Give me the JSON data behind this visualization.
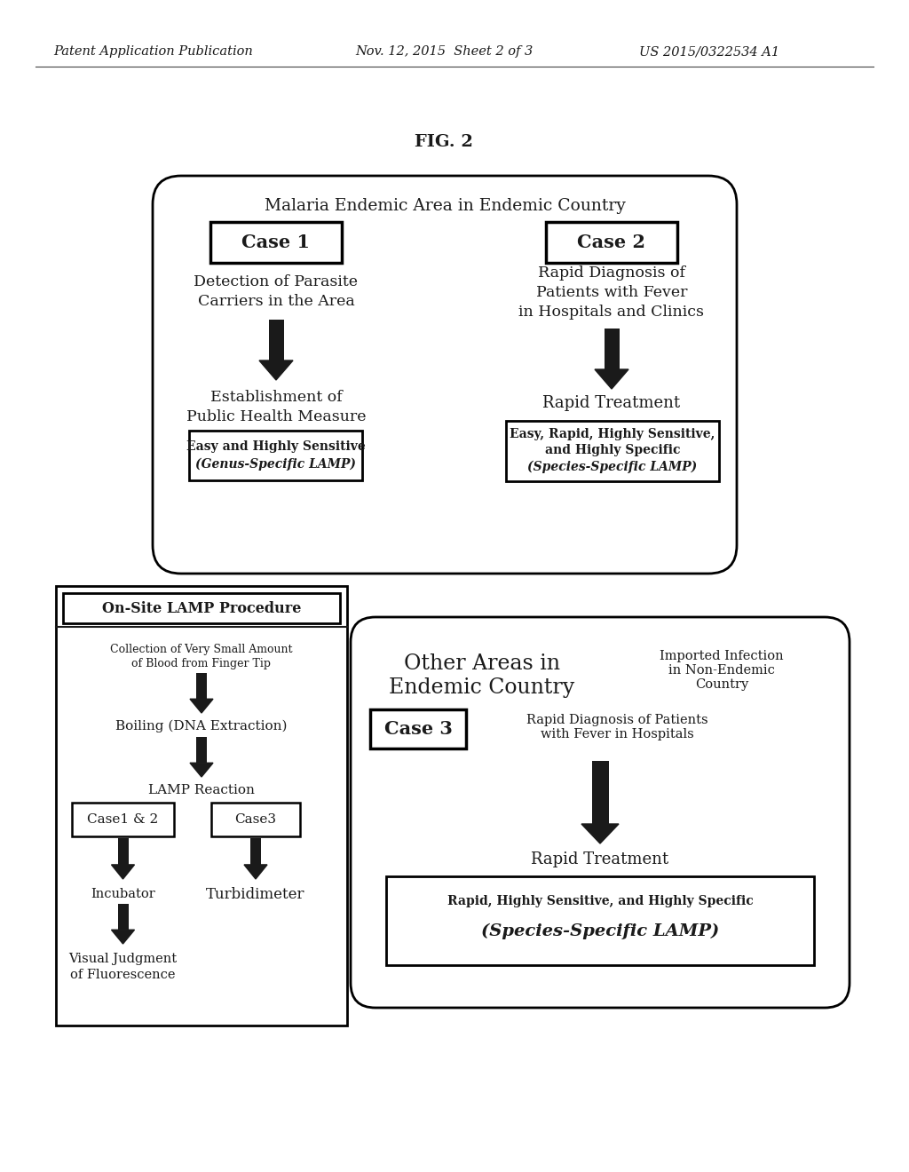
{
  "header_left": "Patent Application Publication",
  "header_mid": "Nov. 12, 2015  Sheet 2 of 3",
  "header_right": "US 2015/0322534 A1",
  "fig_label": "FIG. 2",
  "bg_color": "#ffffff",
  "text_color": "#1a1a1a"
}
